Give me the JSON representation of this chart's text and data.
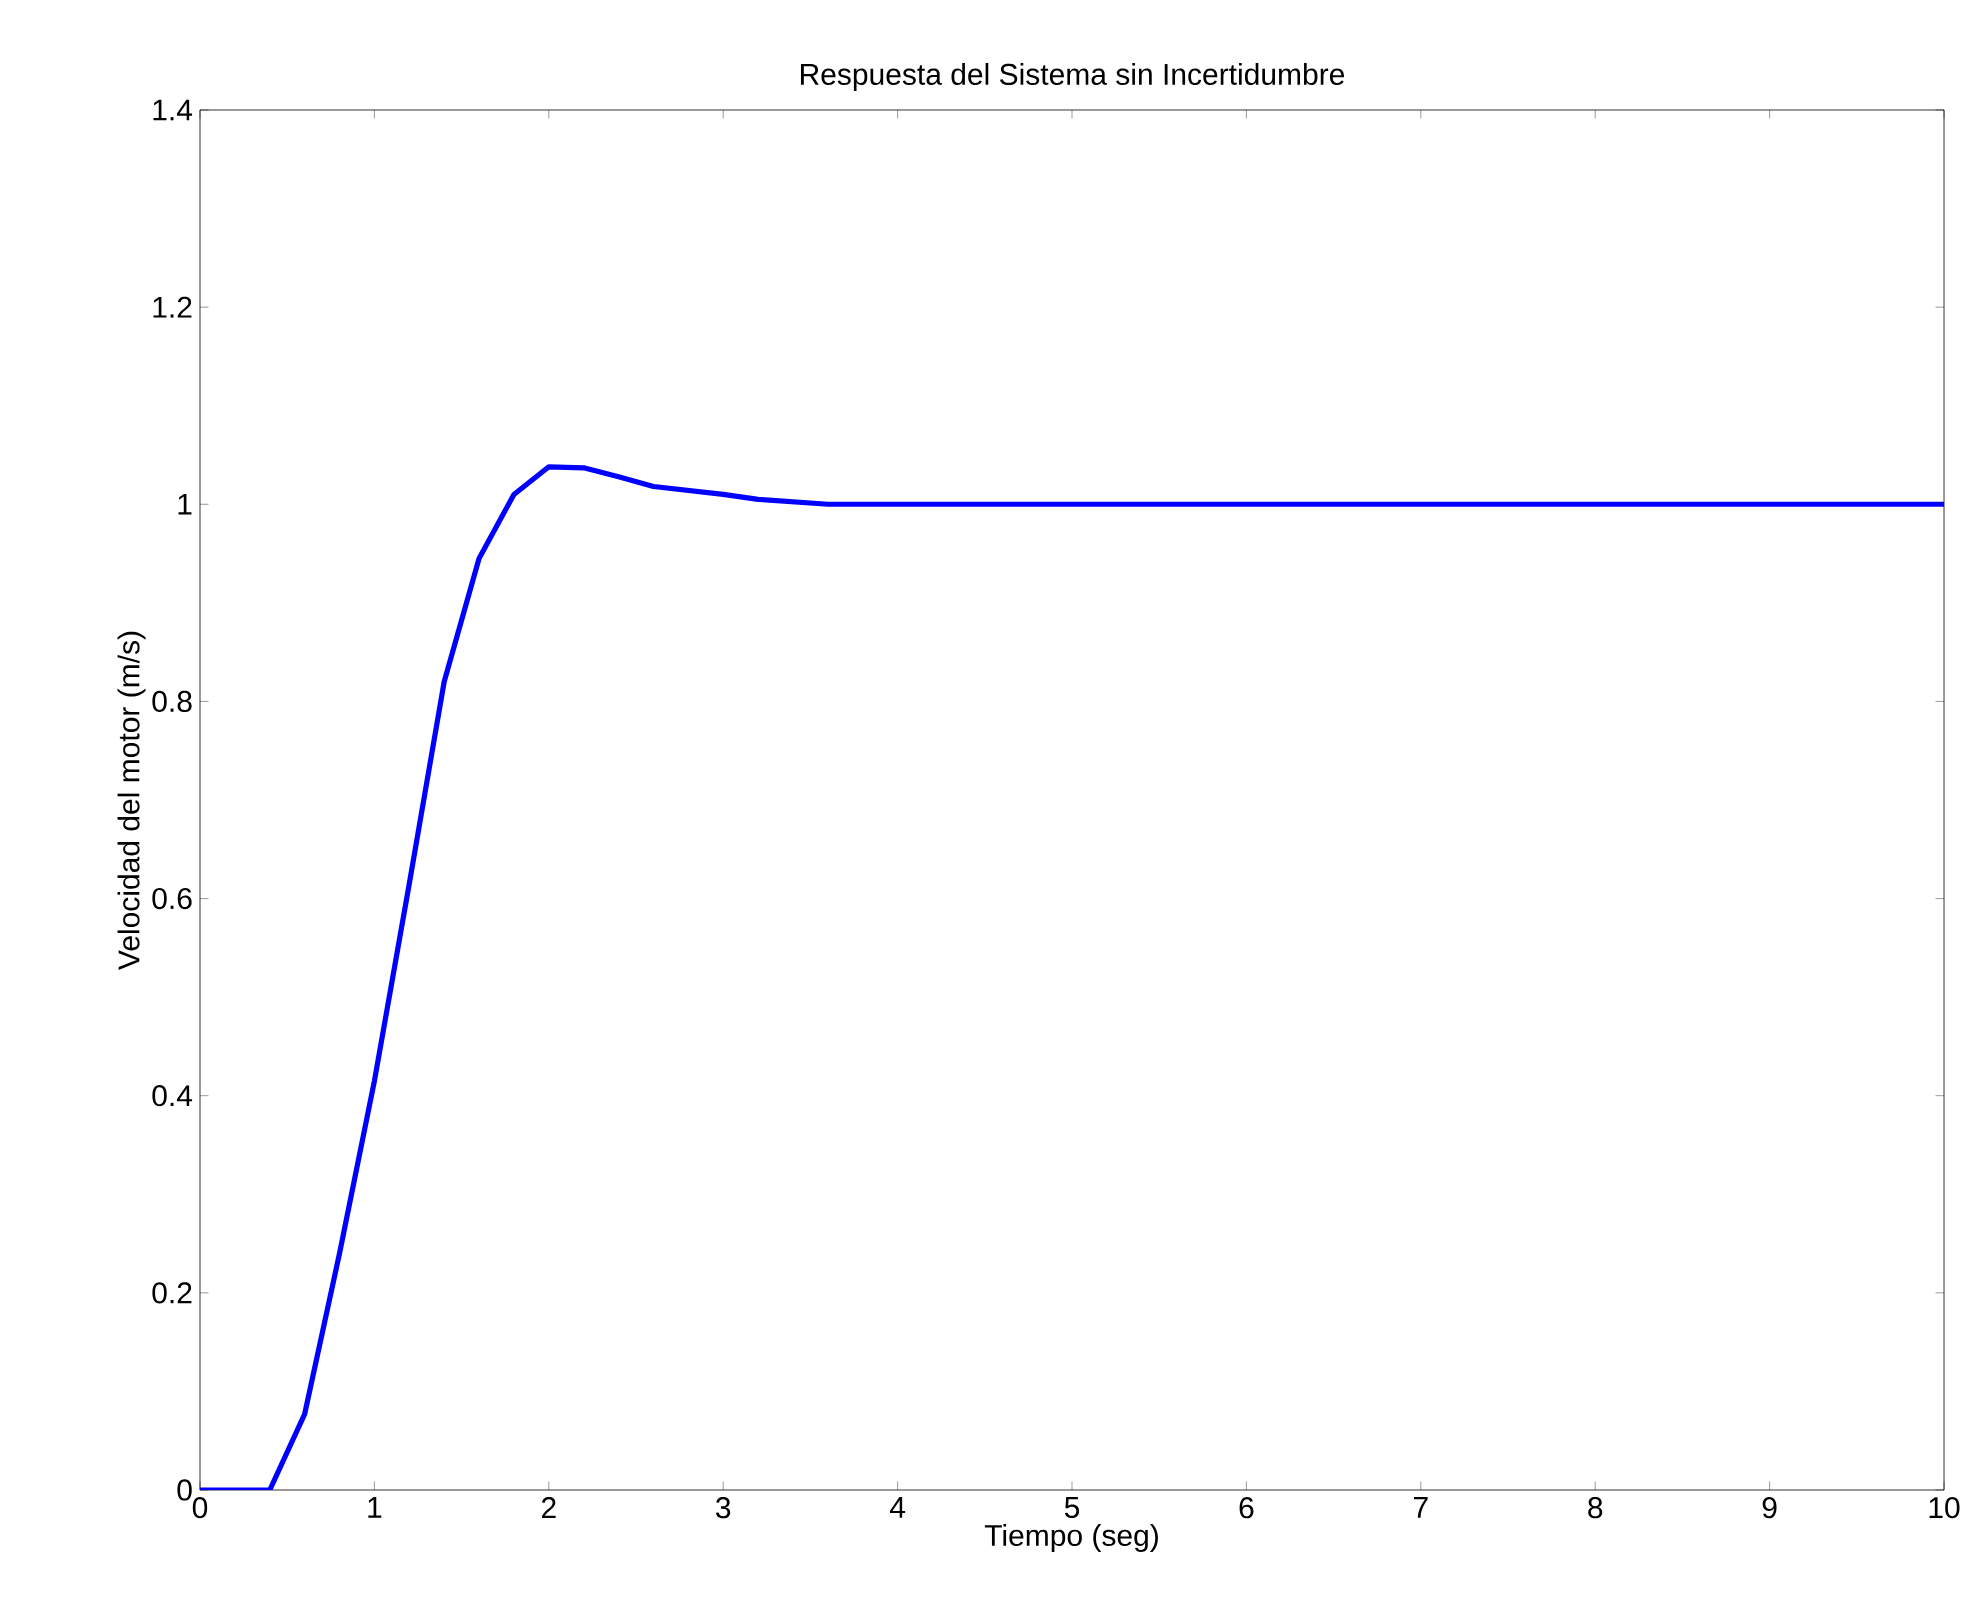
{
  "chart_data": {
    "type": "line",
    "title": "Respuesta del Sistema sin Incertidumbre",
    "xlabel": "Tiempo (seg)",
    "ylabel": "Velocidad del motor (m/s)",
    "x": [
      0,
      0.4,
      0.6,
      0.8,
      1.0,
      1.2,
      1.4,
      1.6,
      1.8,
      2.0,
      2.2,
      2.4,
      2.6,
      3.0,
      3.2,
      3.6,
      4,
      6,
      8,
      10
    ],
    "series": [
      {
        "color": "#0000ff",
        "values": [
          0,
          0,
          0.077,
          0.24,
          0.415,
          0.615,
          0.82,
          0.945,
          1.01,
          1.038,
          1.037,
          1.028,
          1.018,
          1.01,
          1.005,
          1.0,
          1.0,
          1.0,
          1.0,
          1.0
        ]
      }
    ],
    "xlim": [
      0,
      10
    ],
    "ylim": [
      0,
      1.4
    ],
    "xticks": [
      0,
      1,
      2,
      3,
      4,
      5,
      6,
      7,
      8,
      9,
      10
    ],
    "yticks": [
      0,
      0.2,
      0.4,
      0.6,
      0.8,
      1,
      1.2,
      1.4
    ],
    "grid": false,
    "marker": "none",
    "line_style": "solid"
  }
}
